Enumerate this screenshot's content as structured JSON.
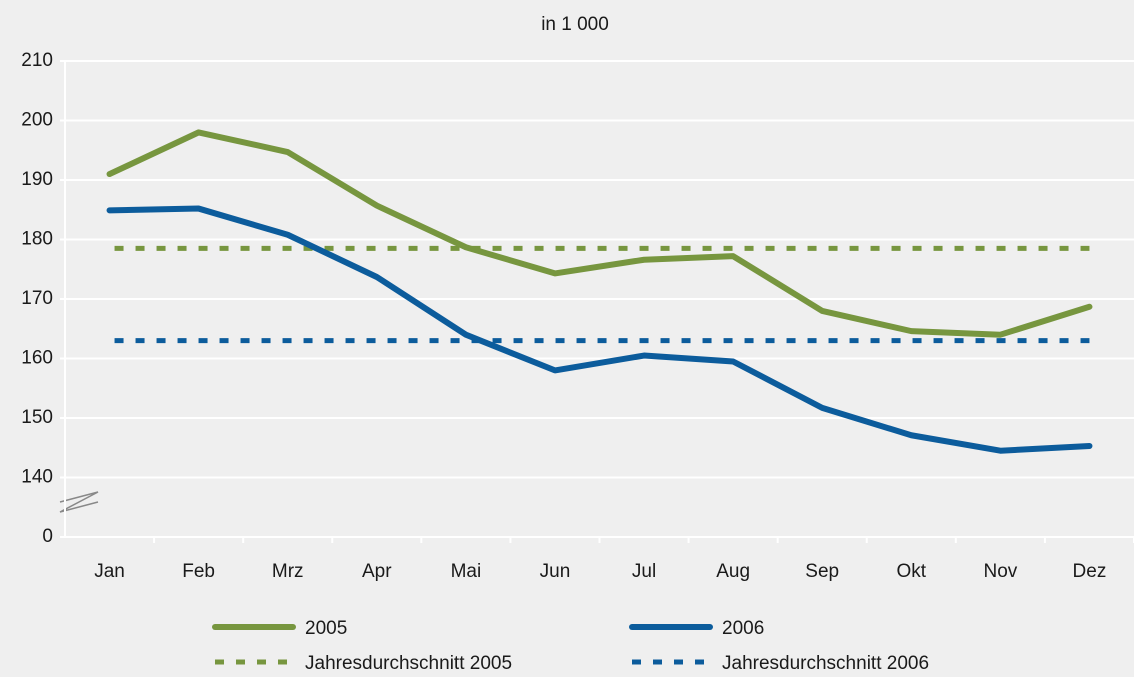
{
  "chart_data": {
    "type": "line",
    "title": "in 1 000",
    "categories": [
      "Jan",
      "Feb",
      "Mrz",
      "Apr",
      "Mai",
      "Jun",
      "Jul",
      "Aug",
      "Sep",
      "Okt",
      "Nov",
      "Dez"
    ],
    "series": [
      {
        "name": "2005",
        "color": "#77963f",
        "values": [
          191,
          198,
          194.7,
          185.7,
          178.7,
          174.3,
          176.6,
          177.2,
          168,
          164.6,
          164,
          168.7
        ]
      },
      {
        "name": "2006",
        "color": "#0c5c9c",
        "values": [
          184.9,
          185.2,
          180.8,
          173.7,
          164,
          158,
          160.5,
          159.5,
          151.7,
          147.1,
          144.5,
          145.3
        ]
      }
    ],
    "averages": [
      {
        "name": "Jahresdurchschnitt 2005",
        "color": "#77963f",
        "value": 178.5
      },
      {
        "name": "Jahresdurchschnitt 2006",
        "color": "#0c5c9c",
        "value": 163
      }
    ],
    "ylim": [
      0,
      210
    ],
    "yticks": [
      0,
      140,
      150,
      160,
      170,
      180,
      190,
      200,
      210
    ],
    "axis_break": [
      0,
      140
    ],
    "grid": true
  }
}
